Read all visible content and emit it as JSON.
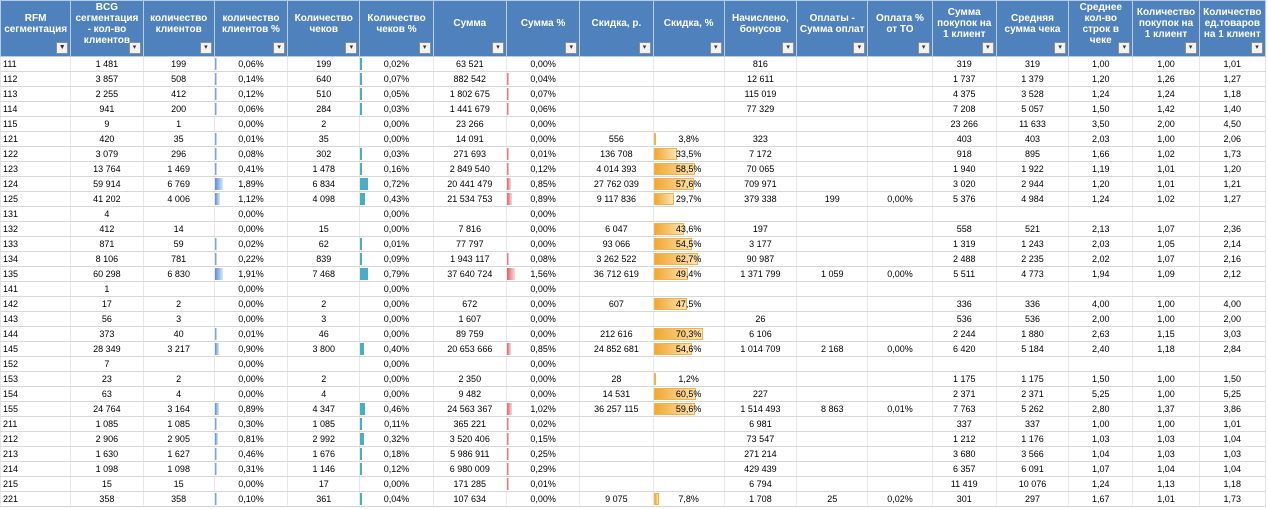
{
  "sheet": {
    "columns": [
      {
        "label": "RFM сегментация",
        "filter": "funnel"
      },
      {
        "label": "BCG сегментация - кол-во клиентов",
        "filter": "arrow"
      },
      {
        "label": "количество клиентов",
        "filter": "arrow"
      },
      {
        "label": "количество клиентов %",
        "filter": "arrow"
      },
      {
        "label": "Количество чеков",
        "filter": "arrow"
      },
      {
        "label": "Количество чеков %",
        "filter": "arrow"
      },
      {
        "label": "Сумма",
        "filter": "arrow"
      },
      {
        "label": "Сумма %",
        "filter": "arrow"
      },
      {
        "label": "Скидка, р.",
        "filter": "arrow"
      },
      {
        "label": "Скидка, %",
        "filter": "arrow"
      },
      {
        "label": "Начислено, бонусов",
        "filter": "arrow"
      },
      {
        "label": "Оплаты - Сумма оплат",
        "filter": "arrow"
      },
      {
        "label": "Оплата % от ТО",
        "filter": "arrow"
      },
      {
        "label": "Сумма покупок на 1 клиент",
        "filter": "arrow"
      },
      {
        "label": "Средняя сумма чека",
        "filter": "arrow"
      },
      {
        "label": "Среднее кол-во строк в чеке",
        "filter": "arrow"
      },
      {
        "label": "Количество покупок на 1 клиент",
        "filter": "arrow"
      },
      {
        "label": "Количество ед.товаров на 1 клиент",
        "filter": "arrow"
      }
    ],
    "rows": [
      [
        "111",
        "1 481",
        "199",
        "0,06%",
        "199",
        "0,02%",
        "63 521",
        "0,00%",
        "",
        "",
        "816",
        "",
        "",
        "319",
        "319",
        "1,00",
        "1,00",
        "1,01"
      ],
      [
        "112",
        "3 857",
        "508",
        "0,14%",
        "640",
        "0,07%",
        "882 542",
        "0,04%",
        "",
        "",
        "12 611",
        "",
        "",
        "1 737",
        "1 379",
        "1,20",
        "1,26",
        "1,27"
      ],
      [
        "113",
        "2 255",
        "412",
        "0,12%",
        "510",
        "0,05%",
        "1 802 675",
        "0,07%",
        "",
        "",
        "115 019",
        "",
        "",
        "4 375",
        "3 528",
        "1,24",
        "1,24",
        "1,18"
      ],
      [
        "114",
        "941",
        "200",
        "0,06%",
        "284",
        "0,03%",
        "1 441 679",
        "0,06%",
        "",
        "",
        "77 329",
        "",
        "",
        "7 208",
        "5 057",
        "1,50",
        "1,42",
        "1,40"
      ],
      [
        "115",
        "9",
        "1",
        "0,00%",
        "2",
        "0,00%",
        "23 266",
        "0,00%",
        "",
        "",
        "",
        "",
        "",
        "23 266",
        "11 633",
        "3,50",
        "2,00",
        "4,50"
      ],
      [
        "121",
        "420",
        "35",
        "0,01%",
        "35",
        "0,00%",
        "14 091",
        "0,00%",
        "556",
        "3,8%",
        "323",
        "",
        "",
        "403",
        "403",
        "2,03",
        "1,00",
        "2,06"
      ],
      [
        "122",
        "3 079",
        "296",
        "0,08%",
        "302",
        "0,03%",
        "271 693",
        "0,01%",
        "136 708",
        "33,5%",
        "7 172",
        "",
        "",
        "918",
        "895",
        "1,66",
        "1,02",
        "1,73"
      ],
      [
        "123",
        "13 764",
        "1 469",
        "0,41%",
        "1 478",
        "0,16%",
        "2 849 540",
        "0,12%",
        "4 014 393",
        "58,5%",
        "70 065",
        "",
        "",
        "1 940",
        "1 922",
        "1,19",
        "1,01",
        "1,20"
      ],
      [
        "124",
        "59 914",
        "6 769",
        "1,89%",
        "6 834",
        "0,72%",
        "20 441 479",
        "0,85%",
        "27 762 039",
        "57,6%",
        "709 971",
        "",
        "",
        "3 020",
        "2 944",
        "1,20",
        "1,01",
        "1,21"
      ],
      [
        "125",
        "41 202",
        "4 006",
        "1,12%",
        "4 098",
        "0,43%",
        "21 534 753",
        "0,89%",
        "9 117 836",
        "29,7%",
        "379 338",
        "199",
        "0,00%",
        "5 376",
        "4 984",
        "1,24",
        "1,02",
        "1,27"
      ],
      [
        "131",
        "4",
        "",
        "0,00%",
        "",
        "0,00%",
        "",
        "0,00%",
        "",
        "",
        "",
        "",
        "",
        "",
        "",
        "",
        "",
        ""
      ],
      [
        "132",
        "412",
        "14",
        "0,00%",
        "15",
        "0,00%",
        "7 816",
        "0,00%",
        "6 047",
        "43,6%",
        "197",
        "",
        "",
        "558",
        "521",
        "2,13",
        "1,07",
        "2,36"
      ],
      [
        "133",
        "871",
        "59",
        "0,02%",
        "62",
        "0,01%",
        "77 797",
        "0,00%",
        "93 066",
        "54,5%",
        "3 177",
        "",
        "",
        "1 319",
        "1 243",
        "2,03",
        "1,05",
        "2,14"
      ],
      [
        "134",
        "8 106",
        "781",
        "0,22%",
        "839",
        "0,09%",
        "1 943 117",
        "0,08%",
        "3 262 522",
        "62,7%",
        "90 987",
        "",
        "",
        "2 488",
        "2 235",
        "2,02",
        "1,07",
        "2,16"
      ],
      [
        "135",
        "60 298",
        "6 830",
        "1,91%",
        "7 468",
        "0,79%",
        "37 640 724",
        "1,56%",
        "36 712 619",
        "49,4%",
        "1 371 799",
        "1 059",
        "0,00%",
        "5 511",
        "4 773",
        "1,94",
        "1,09",
        "2,12"
      ],
      [
        "141",
        "1",
        "",
        "0,00%",
        "",
        "0,00%",
        "",
        "0,00%",
        "",
        "",
        "",
        "",
        "",
        "",
        "",
        "",
        "",
        ""
      ],
      [
        "142",
        "17",
        "2",
        "0,00%",
        "2",
        "0,00%",
        "672",
        "0,00%",
        "607",
        "47,5%",
        "",
        "",
        "",
        "336",
        "336",
        "4,00",
        "1,00",
        "4,00"
      ],
      [
        "143",
        "56",
        "3",
        "0,00%",
        "3",
        "0,00%",
        "1 607",
        "0,00%",
        "",
        "",
        "26",
        "",
        "",
        "536",
        "536",
        "2,00",
        "1,00",
        "2,00"
      ],
      [
        "144",
        "373",
        "40",
        "0,01%",
        "46",
        "0,00%",
        "89 759",
        "0,00%",
        "212 616",
        "70,3%",
        "6 106",
        "",
        "",
        "2 244",
        "1 880",
        "2,63",
        "1,15",
        "3,03"
      ],
      [
        "145",
        "28 349",
        "3 217",
        "0,90%",
        "3 800",
        "0,40%",
        "20 653 666",
        "0,85%",
        "24 852 681",
        "54,6%",
        "1 014 709",
        "2 168",
        "0,00%",
        "6 420",
        "5 184",
        "2,40",
        "1,18",
        "2,84"
      ],
      [
        "152",
        "7",
        "",
        "0,00%",
        "",
        "0,00%",
        "",
        "0,00%",
        "",
        "",
        "",
        "",
        "",
        "",
        "",
        "",
        "",
        ""
      ],
      [
        "153",
        "23",
        "2",
        "0,00%",
        "2",
        "0,00%",
        "2 350",
        "0,00%",
        "28",
        "1,2%",
        "",
        "",
        "",
        "1 175",
        "1 175",
        "1,50",
        "1,00",
        "1,50"
      ],
      [
        "154",
        "63",
        "4",
        "0,00%",
        "4",
        "0,00%",
        "9 482",
        "0,00%",
        "14 531",
        "60,5%",
        "227",
        "",
        "",
        "2 371",
        "2 371",
        "5,25",
        "1,00",
        "5,25"
      ],
      [
        "155",
        "24 764",
        "3 164",
        "0,89%",
        "4 347",
        "0,46%",
        "24 563 367",
        "1,02%",
        "36 257 115",
        "59,6%",
        "1 514 493",
        "8 863",
        "0,01%",
        "7 763",
        "5 262",
        "2,80",
        "1,37",
        "3,86"
      ],
      [
        "211",
        "1 085",
        "1 085",
        "0,30%",
        "1 085",
        "0,11%",
        "365 221",
        "0,02%",
        "",
        "",
        "6 981",
        "",
        "",
        "337",
        "337",
        "1,00",
        "1,00",
        "1,01"
      ],
      [
        "212",
        "2 906",
        "2 905",
        "0,81%",
        "2 992",
        "0,32%",
        "3 520 406",
        "0,15%",
        "",
        "",
        "73 547",
        "",
        "",
        "1 212",
        "1 176",
        "1,03",
        "1,03",
        "1,04"
      ],
      [
        "213",
        "1 630",
        "1 627",
        "0,46%",
        "1 676",
        "0,18%",
        "5 986 911",
        "0,25%",
        "",
        "",
        "271 214",
        "",
        "",
        "3 680",
        "3 566",
        "1,04",
        "1,03",
        "1,03"
      ],
      [
        "214",
        "1 098",
        "1 098",
        "0,31%",
        "1 146",
        "0,12%",
        "6 980 009",
        "0,29%",
        "",
        "",
        "429 439",
        "",
        "",
        "6 357",
        "6 091",
        "1,07",
        "1,04",
        "1,04"
      ],
      [
        "215",
        "15",
        "15",
        "0,00%",
        "17",
        "0,00%",
        "171 285",
        "0,01%",
        "",
        "",
        "6 794",
        "",
        "",
        "11 419",
        "10 076",
        "1,24",
        "1,13",
        "1,18"
      ],
      [
        "221",
        "358",
        "358",
        "0,10%",
        "361",
        "0,04%",
        "107 634",
        "0,00%",
        "9 075",
        "7,8%",
        "1 708",
        "25",
        "0,02%",
        "301",
        "297",
        "1,67",
        "1,01",
        "1,73"
      ]
    ],
    "bar_columns": {
      "3": {
        "color": "blue",
        "max_value": 1.91
      },
      "5": {
        "color": "teal",
        "max_value": 0.79
      },
      "7": {
        "color": "red",
        "max_value": 1.56
      },
      "9": {
        "color": "gold",
        "max_value": 100
      }
    },
    "colors": {
      "header_bg": "#4f81bd",
      "header_text": "#ffffff",
      "bar_blue": "#5a8ed0",
      "bar_red": "#e0626a",
      "bar_gold": "#f0a830"
    }
  }
}
